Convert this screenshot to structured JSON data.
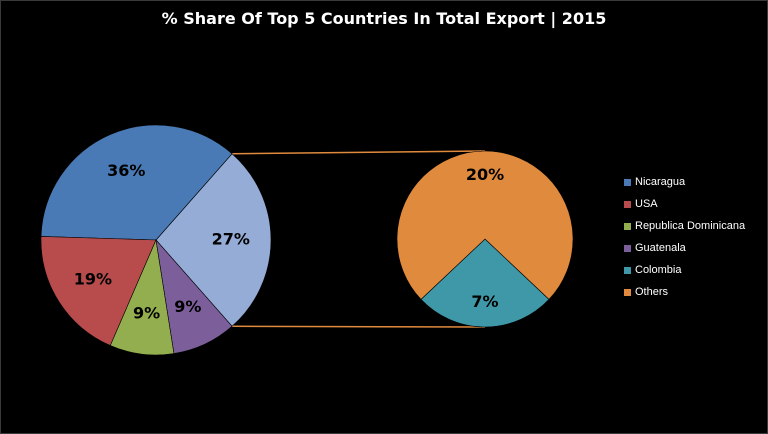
{
  "chart_data": {
    "type": "pie",
    "title": "% Share Of Top 5 Countries In Total Export | 2015",
    "variant": "pie-of-pie",
    "unit": "%",
    "slices": [
      {
        "label": "Nicaragua",
        "value": 36,
        "color": "#4a7ab5"
      },
      {
        "label": "USA",
        "value": 19,
        "color": "#b84c4c"
      },
      {
        "label": "Republica Dominicana",
        "value": 9,
        "color": "#93ae4f"
      },
      {
        "label": "Guatenala",
        "value": 9,
        "color": "#7c5f9a"
      },
      {
        "label": "Others",
        "value": 27,
        "color": "#94acd6",
        "breakout": true
      }
    ],
    "secondary_slices": [
      {
        "label": "Colombia",
        "value": 7,
        "color": "#3f98a8"
      },
      {
        "label": "Others",
        "value": 20,
        "color": "#e08a3e"
      }
    ],
    "legend": {
      "placement": "right",
      "items": [
        {
          "label": "Nicaragua",
          "color": "#4a7ab5"
        },
        {
          "label": "USA",
          "color": "#b84c4c"
        },
        {
          "label": "Republica Dominicana",
          "color": "#93ae4f"
        },
        {
          "label": "Guatenala",
          "color": "#7c5f9a"
        },
        {
          "label": "Colombia",
          "color": "#3f98a8"
        },
        {
          "label": "Others",
          "color": "#e08a3e"
        }
      ]
    },
    "connector_color": "#e08a3e"
  }
}
